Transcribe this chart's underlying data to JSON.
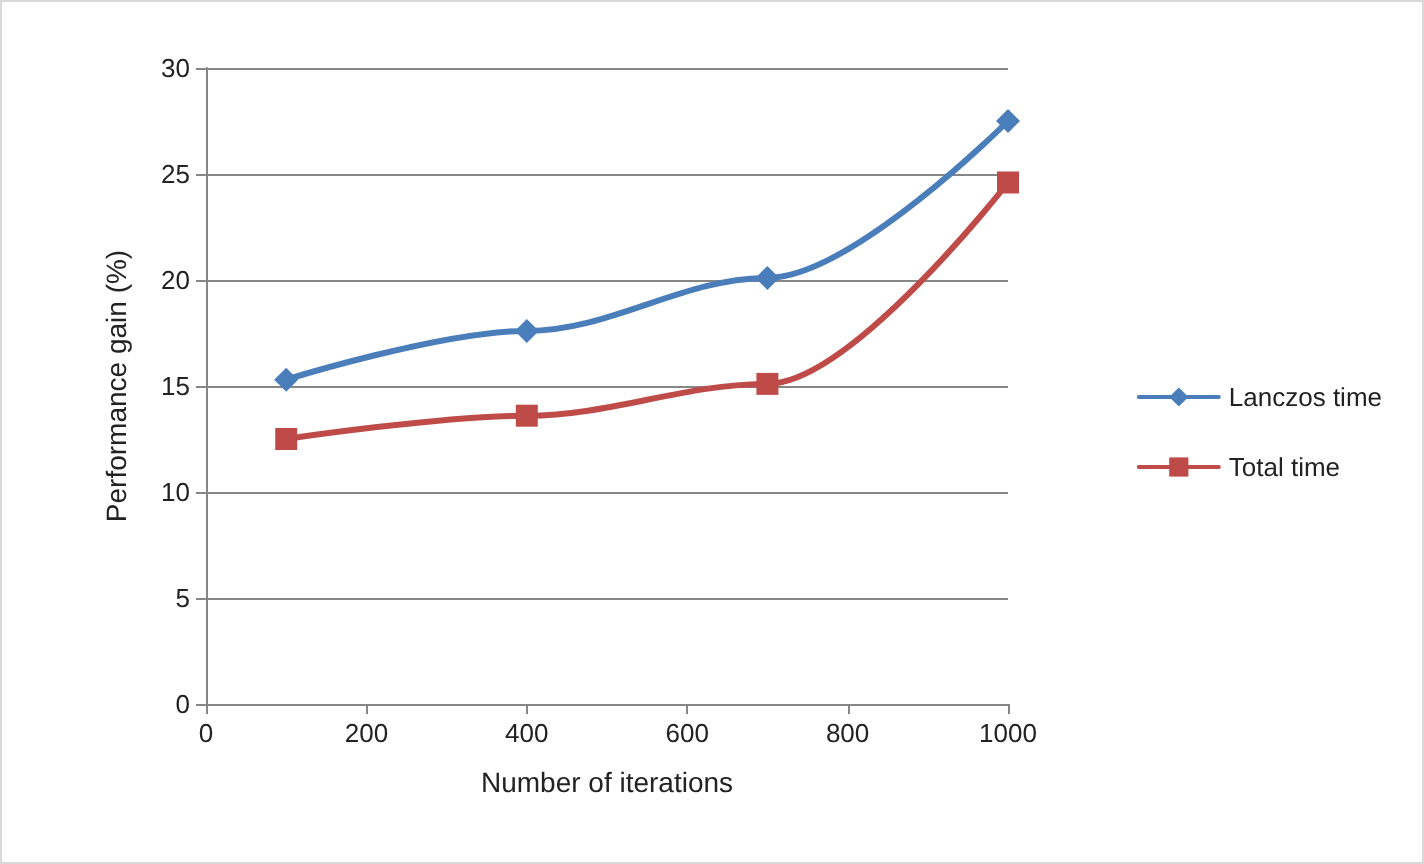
{
  "chart_data": {
    "type": "line",
    "xlabel": "Number of iterations",
    "ylabel": "Performance gain (%)",
    "x": [
      100,
      400,
      700,
      1000
    ],
    "series": [
      {
        "name": "Lanczos time",
        "color": "#4a7ebb",
        "marker": "diamond",
        "values": [
          15.3,
          17.6,
          20.1,
          27.5
        ]
      },
      {
        "name": "Total time",
        "color": "#be4b48",
        "marker": "square",
        "values": [
          12.5,
          13.6,
          15.1,
          24.6
        ]
      }
    ],
    "xlim": [
      0,
      1000
    ],
    "xticks": [
      0,
      200,
      400,
      600,
      800,
      1000
    ],
    "ylim": [
      0,
      30
    ],
    "yticks": [
      0,
      5,
      10,
      15,
      20,
      25,
      30
    ],
    "grid": "y",
    "legend": "right",
    "line_style": "solid"
  }
}
